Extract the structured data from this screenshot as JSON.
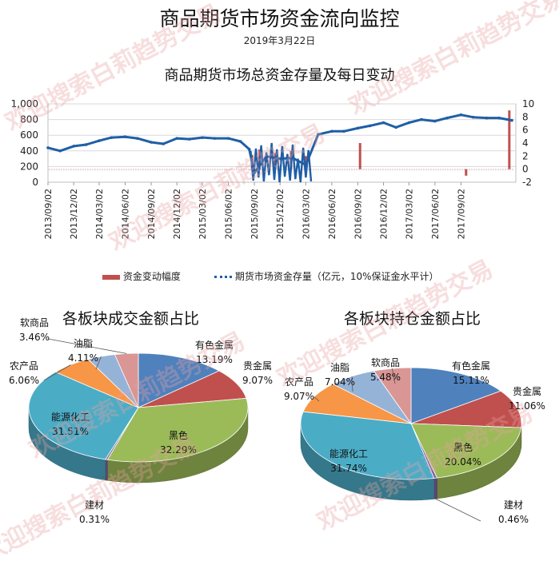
{
  "header": {
    "title": "商品期货市场资金流向监控",
    "date": "2019年3月22日"
  },
  "watermark_text": "欢迎搜索白莉趋势交易",
  "colors": {
    "line": "#1f5fa6",
    "bar": "#c0504d",
    "grid": "#d9d9d9"
  },
  "chart_data": [
    {
      "type": "line",
      "title": "商品期货市场总资金存量及每日变动",
      "x_tick_labels": [
        "2013/09/02",
        "2013/12/02",
        "2014/03/02",
        "2014/06/02",
        "2014/09/02",
        "2014/12/02",
        "2015/03/02",
        "2015/06/02",
        "2015/09/02",
        "2015/12/02",
        "2016/03/02",
        "2016/06/02",
        "2016/09/02",
        "2016/12/02",
        "2017/03/02",
        "2017/06/02",
        "2017/09/02"
      ],
      "y_left": {
        "range": [
          0,
          1000
        ],
        "tick_labels": [
          "0",
          "200",
          "400",
          "600",
          "800",
          "1,000"
        ]
      },
      "y_right": {
        "range": [
          -2,
          10
        ],
        "tick_labels": [
          "-2",
          "0",
          "2",
          "4",
          "6",
          "8",
          "10"
        ]
      },
      "grid": true,
      "legend_position": "bottom",
      "series": [
        {
          "name": "期货市场资金存量（亿元，10%保证金水平计）",
          "axis": "left",
          "style": "line",
          "x": [
            "2013/09/02",
            "2013/10/15",
            "2013/12/02",
            "2014/01/15",
            "2014/03/02",
            "2014/04/15",
            "2014/06/02",
            "2014/07/15",
            "2014/09/02",
            "2014/10/15",
            "2014/12/02",
            "2015/01/15",
            "2015/03/02",
            "2015/04/15",
            "2015/06/02",
            "2015/07/15",
            "2015/08/15",
            "2015/09/02",
            "2015/10/15",
            "2015/12/02",
            "2016/01/15",
            "2016/03/02",
            "2016/04/15",
            "2016/06/02",
            "2016/07/15",
            "2016/09/02",
            "2016/10/15",
            "2016/12/02",
            "2017/01/15",
            "2017/03/02",
            "2017/04/15",
            "2017/06/02",
            "2017/07/15",
            "2017/09/02",
            "2017/10/15",
            "2017/12/02",
            "2018/01/15",
            "2018/03/01"
          ],
          "values": [
            440,
            400,
            460,
            480,
            530,
            570,
            580,
            560,
            510,
            490,
            560,
            550,
            570,
            560,
            560,
            520,
            420,
            120,
            330,
            300,
            310,
            220,
            610,
            650,
            650,
            690,
            720,
            760,
            700,
            760,
            800,
            780,
            820,
            860,
            830,
            820,
            820,
            790
          ]
        },
        {
          "name": "资金变动幅度",
          "axis": "right",
          "style": "bar",
          "x": [
            "2015/08/25",
            "2015/09/20",
            "2015/11/15",
            "2016/01/10",
            "2016/03/02",
            "2016/09/10",
            "2017/09/20",
            "2018/02/20"
          ],
          "values": [
            2.2,
            3.0,
            2.5,
            2.8,
            2.0,
            4.0,
            -1.0,
            9.0
          ]
        }
      ]
    },
    {
      "type": "pie",
      "title": "各板块成交金额占比",
      "categories": [
        "有色金属",
        "贵金属",
        "黑色",
        "建材",
        "能源化工",
        "农产品",
        "油脂",
        "软商品"
      ],
      "values": [
        13.19,
        9.07,
        32.29,
        0.31,
        31.51,
        6.06,
        4.11,
        3.46
      ],
      "labels": [
        "13.19%",
        "9.07%",
        "32.29%",
        "0.31%",
        "31.51%",
        "6.06%",
        "4.11%",
        "3.46%"
      ]
    },
    {
      "type": "pie",
      "title": "各板块持仓金额占比",
      "categories": [
        "有色金属",
        "贵金属",
        "黑色",
        "建材",
        "能源化工",
        "农产品",
        "油脂",
        "软商品"
      ],
      "values": [
        15.11,
        11.06,
        20.04,
        0.46,
        31.74,
        9.07,
        7.04,
        5.48
      ],
      "labels": [
        "15.11%",
        "11.06%",
        "20.04%",
        "0.46%",
        "31.74%",
        "9.07%",
        "7.04%",
        "5.48%"
      ]
    }
  ],
  "pie_colors": [
    "#4f81bd",
    "#c0504d",
    "#9bbb59",
    "#8064a2",
    "#4bacc6",
    "#f79646",
    "#95b3d7",
    "#d99694"
  ]
}
